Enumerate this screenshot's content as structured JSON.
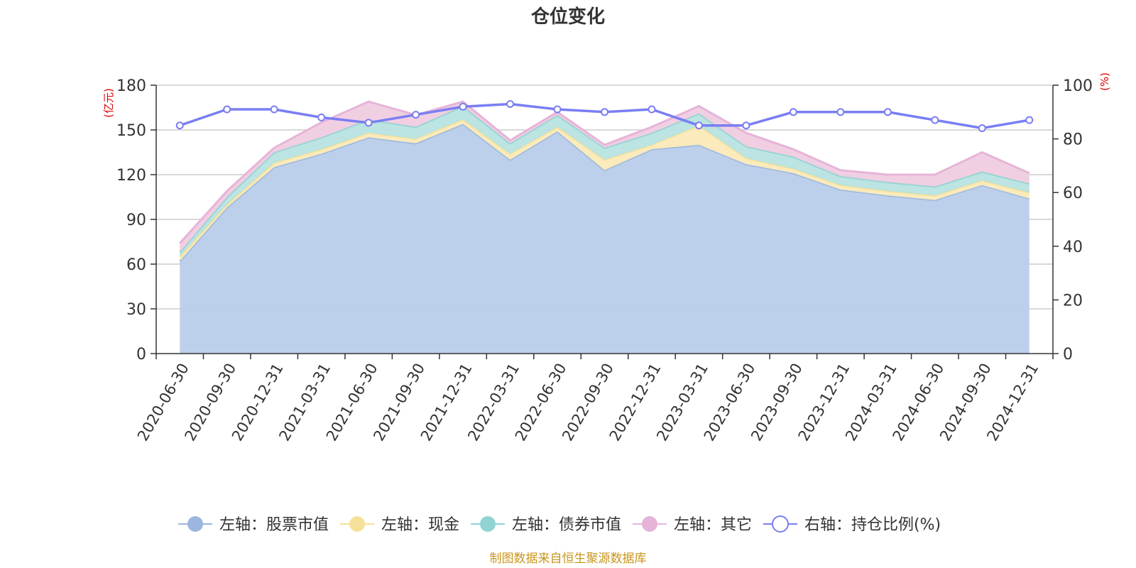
{
  "chart_data": {
    "type": "area",
    "title": "仓位变化",
    "x": [
      "2020-06-30",
      "2020-09-30",
      "2020-12-31",
      "2021-03-31",
      "2021-06-30",
      "2021-09-30",
      "2021-12-31",
      "2022-03-31",
      "2022-06-30",
      "2022-09-30",
      "2022-12-31",
      "2023-03-31",
      "2023-06-30",
      "2023-09-30",
      "2023-12-31",
      "2024-03-31",
      "2024-06-30",
      "2024-09-30",
      "2024-12-31"
    ],
    "left_axis": {
      "unit": "(亿元)",
      "ylim": [
        0,
        180
      ],
      "ticks": [
        0,
        30,
        60,
        90,
        120,
        150,
        180
      ]
    },
    "right_axis": {
      "unit": "(%)",
      "ylim": [
        0,
        100
      ],
      "ticks": [
        0,
        20,
        40,
        60,
        80,
        100
      ]
    },
    "stacked": true,
    "grid": true,
    "legend_position": "bottom",
    "series": [
      {
        "name": "左轴：股票市值",
        "axis": "left",
        "type": "area",
        "color": "#9bb7e0",
        "fill": "#b9cdea",
        "values": [
          62,
          98,
          125,
          134,
          145,
          141,
          154,
          130,
          149,
          123,
          137,
          140,
          127,
          121,
          110,
          106,
          103,
          113,
          104
        ]
      },
      {
        "name": "左轴：现金",
        "axis": "left",
        "type": "area",
        "color": "#f7e09a",
        "fill": "#fbeab8",
        "values": [
          3,
          2,
          3,
          3,
          3,
          3,
          3,
          4,
          3,
          7,
          3,
          13,
          4,
          3,
          3,
          3,
          3,
          3,
          4
        ]
      },
      {
        "name": "左轴：债券市值",
        "axis": "left",
        "type": "area",
        "color": "#8fd3d3",
        "fill": "#b7e3e0",
        "values": [
          3,
          5,
          7,
          8,
          9,
          8,
          9,
          7,
          8,
          8,
          8,
          8,
          8,
          8,
          6,
          6,
          6,
          6,
          6
        ]
      },
      {
        "name": "左轴：其它",
        "axis": "left",
        "type": "area",
        "color": "#e6b4d8",
        "fill": "#f0cce2",
        "values": [
          6,
          4,
          3,
          10,
          12,
          8,
          3,
          2,
          2,
          2,
          4,
          5,
          9,
          5,
          4,
          5,
          8,
          13,
          7
        ]
      },
      {
        "name": "右轴：持仓比例(%)",
        "axis": "right",
        "type": "line",
        "color": "#7a7ef2",
        "values": [
          85,
          91,
          91,
          88,
          86,
          89,
          92,
          93,
          91,
          90,
          91,
          85,
          85,
          90,
          90,
          90,
          87,
          84,
          87
        ]
      }
    ]
  },
  "source_note": "制图数据来自恒生聚源数据库"
}
